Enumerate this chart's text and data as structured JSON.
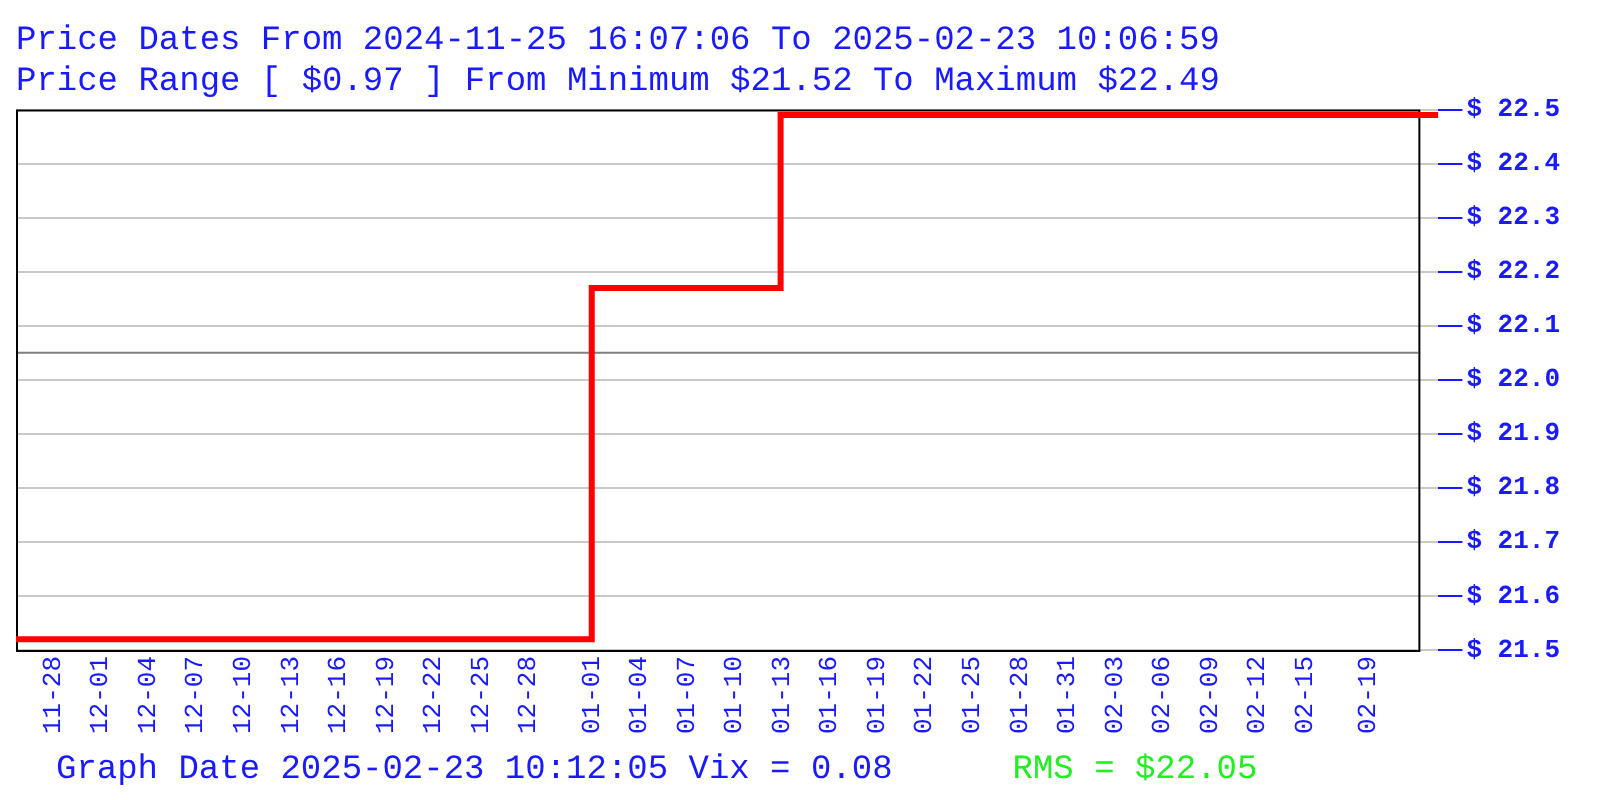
{
  "chart_data": {
    "type": "step",
    "title": "Price Dates From 2024-11-25 16:07:06 To 2025-02-23 10:06:59",
    "subtitle": "Price Range [ $0.97 ] From Minimum $21.52 To Maximum $22.49",
    "x": [
      "2024-11-25T16:07",
      "2025-01-01",
      "2025-01-12T22:00",
      "2025-02-23T10:06"
    ],
    "series": [
      {
        "color": "#ff0000",
        "values": [
          21.52,
          22.17,
          22.49,
          22.49
        ]
      }
    ],
    "xlim": [
      "2024-11-25T16:07",
      "2025-02-23T10:06"
    ],
    "xticks": [
      {
        "value": "2024-11-28",
        "label": "11-28"
      },
      {
        "value": "2024-12-01",
        "label": "12-01"
      },
      {
        "value": "2024-12-04",
        "label": "12-04"
      },
      {
        "value": "2024-12-07",
        "label": "12-07"
      },
      {
        "value": "2024-12-10",
        "label": "12-10"
      },
      {
        "value": "2024-12-13",
        "label": "12-13"
      },
      {
        "value": "2024-12-16",
        "label": "12-16"
      },
      {
        "value": "2024-12-19",
        "label": "12-19"
      },
      {
        "value": "2024-12-22",
        "label": "12-22"
      },
      {
        "value": "2024-12-25",
        "label": "12-25"
      },
      {
        "value": "2024-12-28",
        "label": "12-28"
      },
      {
        "value": "2025-01-01",
        "label": "01-01"
      },
      {
        "value": "2025-01-04",
        "label": "01-04"
      },
      {
        "value": "2025-01-07",
        "label": "01-07"
      },
      {
        "value": "2025-01-10",
        "label": "01-10"
      },
      {
        "value": "2025-01-13",
        "label": "01-13"
      },
      {
        "value": "2025-01-16",
        "label": "01-16"
      },
      {
        "value": "2025-01-19",
        "label": "01-19"
      },
      {
        "value": "2025-01-22",
        "label": "01-22"
      },
      {
        "value": "2025-01-25",
        "label": "01-25"
      },
      {
        "value": "2025-01-28",
        "label": "01-28"
      },
      {
        "value": "2025-01-31",
        "label": "01-31"
      },
      {
        "value": "2025-02-03",
        "label": "02-03"
      },
      {
        "value": "2025-02-06",
        "label": "02-06"
      },
      {
        "value": "2025-02-09",
        "label": "02-09"
      },
      {
        "value": "2025-02-12",
        "label": "02-12"
      },
      {
        "value": "2025-02-15",
        "label": "02-15"
      },
      {
        "value": "2025-02-19",
        "label": "02-19"
      }
    ],
    "ylim": [
      21.5,
      22.5
    ],
    "yticks": [
      {
        "value": 21.5,
        "label": "$ 21.5"
      },
      {
        "value": 21.6,
        "label": "$ 21.6"
      },
      {
        "value": 21.7,
        "label": "$ 21.7"
      },
      {
        "value": 21.8,
        "label": "$ 21.8"
      },
      {
        "value": 21.9,
        "label": "$ 21.9"
      },
      {
        "value": 22.0,
        "label": "$ 22.0"
      },
      {
        "value": 22.1,
        "label": "$ 22.1"
      },
      {
        "value": 22.2,
        "label": "$ 22.2"
      },
      {
        "value": 22.3,
        "label": "$ 22.3"
      },
      {
        "value": 22.4,
        "label": "$ 22.4"
      },
      {
        "value": 22.5,
        "label": "$ 22.5"
      }
    ],
    "ref_lines": [
      {
        "axis": "y",
        "value": 22.05,
        "color": "#808080"
      }
    ],
    "grid": "y",
    "annotations": [
      "Graph Date 2025-02-23 10:12:05 Vix = 0.08",
      "RMS = $22.05"
    ]
  }
}
